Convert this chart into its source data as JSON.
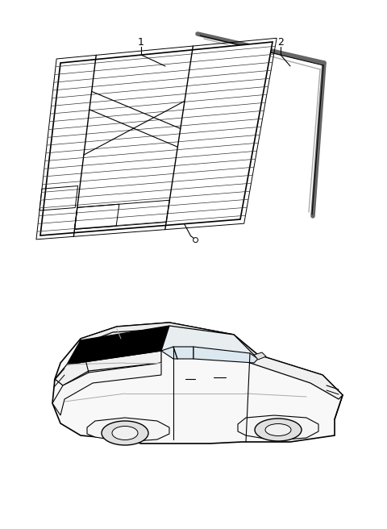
{
  "background_color": "#ffffff",
  "line_color": "#000000",
  "gray_color": "#888888",
  "dark_gray": "#555555",
  "black": "#000000",
  "item1_label": "1",
  "item2_label": "2"
}
